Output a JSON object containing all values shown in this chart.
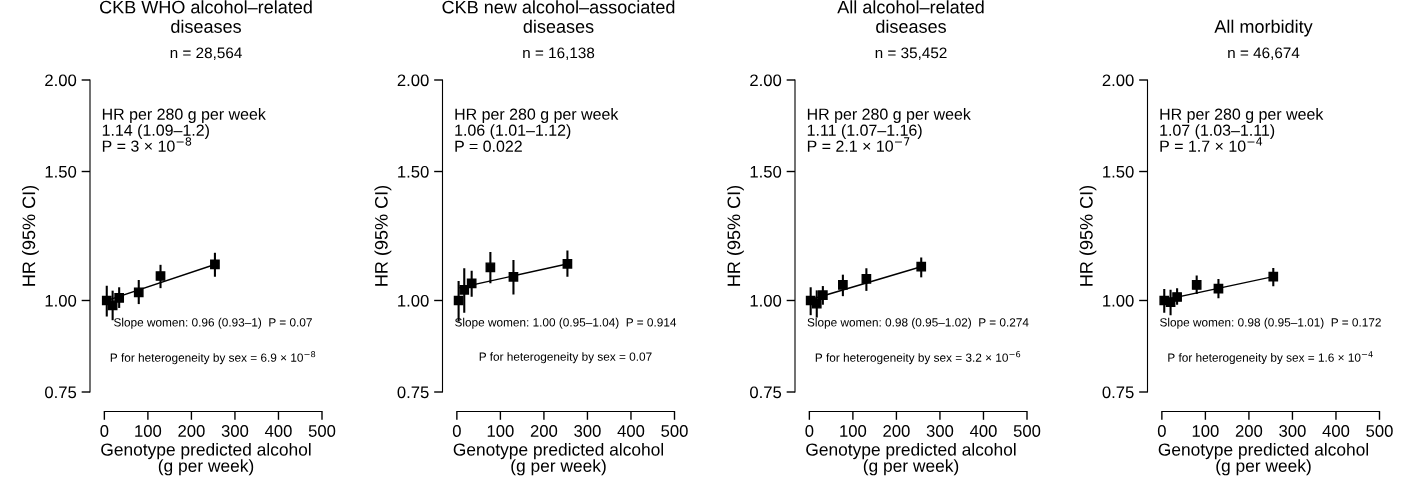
{
  "chart_data": [
    {
      "type": "scatter",
      "title": "CKB WHO alcohol–related\ndiseases",
      "xlabel": "Genotype predicted alcohol\n(g per week)",
      "ylabel": "HR (95% CI)",
      "log": true,
      "xlim": [
        -33,
        500
      ],
      "ylim": [
        0.75,
        2.0
      ],
      "xticks": [
        0,
        100,
        200,
        300,
        400,
        500
      ],
      "yticks": [
        {
          "value": 0.75,
          "label": "0.75"
        },
        {
          "value": 1.0,
          "label": "1.00"
        },
        {
          "value": 1.5,
          "label": "1.50"
        },
        {
          "value": 2.0,
          "label": "2.00"
        }
      ],
      "annotations": [
        "n = 28,564",
        "HR per 280 g per week\n1.14 (1.09–1.2)\nP = 3 × 10$^{−8}$",
        "Slope women: 0.96 (0.93–1)  P = 0.07",
        "P for heterogeneity by sex = 6.9 × 10$^{−8}$"
      ],
      "series": [
        {
          "marker": "square",
          "color": "#000000",
          "x": [
            5.5,
            19,
            34,
            79,
            129,
            254
          ],
          "values": [
            1.0,
            0.985,
            1.008,
            1.026,
            1.08,
            1.12
          ],
          "errors": [
            [
              0.954,
              1.044
            ],
            [
              0.943,
              1.028
            ],
            [
              0.98,
              1.039
            ],
            [
              0.992,
              1.063
            ],
            [
              1.043,
              1.115
            ],
            [
              1.081,
              1.158
            ]
          ]
        },
        {
          "type": "line",
          "color": "#000000",
          "x": [
            12,
            254
          ],
          "values": [
            1.003,
            1.12
          ]
        }
      ]
    },
    {
      "type": "scatter",
      "title": "CKB new alcohol–associated\ndiseases",
      "xlabel": "Genotype predicted alcohol\n(g per week)",
      "ylabel": "HR (95% CI)",
      "log": true,
      "xlim": [
        -33,
        500
      ],
      "ylim": [
        0.75,
        2.0
      ],
      "xticks": [
        0,
        100,
        200,
        300,
        400,
        500
      ],
      "yticks": [
        {
          "value": 0.75,
          "label": "0.75"
        },
        {
          "value": 1.0,
          "label": "1.00"
        },
        {
          "value": 1.5,
          "label": "1.50"
        },
        {
          "value": 2.0,
          "label": "2.00"
        }
      ],
      "annotations": [
        "n = 16,138",
        "HR per 280 g per week\n1.06 (1.01–1.12)\nP = 0.022",
        "Slope women: 1.00 (0.95–1.04)  P = 0.914",
        "P for heterogeneity by sex = 0.07"
      ],
      "series": [
        {
          "marker": "square",
          "color": "#000000",
          "x": [
            4,
            17,
            34,
            77,
            130,
            254
          ],
          "values": [
            1.0,
            1.034,
            1.055,
            1.11,
            1.077,
            1.122
          ],
          "errors": [
            [
              0.939,
              1.06
            ],
            [
              0.965,
              1.103
            ],
            [
              1.015,
              1.094
            ],
            [
              1.059,
              1.161
            ],
            [
              1.022,
              1.132
            ],
            [
              1.081,
              1.166
            ]
          ]
        },
        {
          "type": "line",
          "color": "#000000",
          "x": [
            7,
            254
          ],
          "values": [
            1.041,
            1.122
          ]
        }
      ]
    },
    {
      "type": "scatter",
      "title": "All alcohol–related\ndiseases",
      "xlabel": "Genotype predicted alcohol\n(g per week)",
      "ylabel": "HR (95% CI)",
      "log": true,
      "xlim": [
        -33,
        500
      ],
      "ylim": [
        0.75,
        2.0
      ],
      "xticks": [
        0,
        100,
        200,
        300,
        400,
        500
      ],
      "yticks": [
        {
          "value": 0.75,
          "label": "0.75"
        },
        {
          "value": 1.0,
          "label": "1.00"
        },
        {
          "value": 1.5,
          "label": "1.50"
        },
        {
          "value": 2.0,
          "label": "2.00"
        }
      ],
      "annotations": [
        "n = 35,452",
        "HR per 280 g per week\n1.11 (1.07–1.16)\nP = 2.1 × 10$^{−7}$",
        "Slope women: 0.98 (0.95–1.02)  P = 0.274",
        "P for heterogeneity by sex = 3.2 × 10$^{−6}$"
      ],
      "series": [
        {
          "marker": "square",
          "color": "#000000",
          "x": [
            3,
            17,
            31,
            77,
            131,
            257
          ],
          "values": [
            1.0,
            0.99,
            1.017,
            1.05,
            1.07,
            1.112
          ],
          "errors": [
            [
              0.958,
              1.039
            ],
            [
              0.951,
              1.029
            ],
            [
              0.99,
              1.043
            ],
            [
              1.017,
              1.081
            ],
            [
              1.034,
              1.103
            ],
            [
              1.079,
              1.141
            ]
          ]
        },
        {
          "type": "line",
          "color": "#000000",
          "x": [
            3,
            257
          ],
          "values": [
            1.003,
            1.112
          ]
        }
      ]
    },
    {
      "type": "scatter",
      "title": "All morbidity",
      "xlabel": "Genotype predicted alcohol\n(g per week)",
      "ylabel": "HR (95% CI)",
      "log": true,
      "xlim": [
        -33,
        500
      ],
      "ylim": [
        0.75,
        2.0
      ],
      "xticks": [
        0,
        100,
        200,
        300,
        400,
        500
      ],
      "yticks": [
        {
          "value": 0.75,
          "label": "0.75"
        },
        {
          "value": 1.0,
          "label": "1.00"
        },
        {
          "value": 1.5,
          "label": "1.50"
        },
        {
          "value": 2.0,
          "label": "2.00"
        }
      ],
      "annotations": [
        "n = 46,674",
        "HR per 280 g per week\n1.07 (1.03–1.11)\nP = 1.7 × 10$^{−4}$",
        "Slope women: 0.98 (0.95–1.01)  P = 0.172",
        "P for heterogeneity by sex = 1.6 × 10$^{−4}$"
      ],
      "series": [
        {
          "marker": "square",
          "color": "#000000",
          "x": [
            5.5,
            20,
            35,
            80,
            130,
            256
          ],
          "values": [
            1.0,
            0.995,
            1.011,
            1.05,
            1.038,
            1.078
          ],
          "errors": [
            [
              0.965,
              1.033
            ],
            [
              0.958,
              1.031
            ],
            [
              0.99,
              1.036
            ],
            [
              1.024,
              1.078
            ],
            [
              1.01,
              1.066
            ],
            [
              1.049,
              1.104
            ]
          ]
        },
        {
          "type": "line",
          "color": "#000000",
          "x": [
            5,
            256
          ],
          "values": [
            1.002,
            1.078
          ]
        }
      ]
    }
  ]
}
